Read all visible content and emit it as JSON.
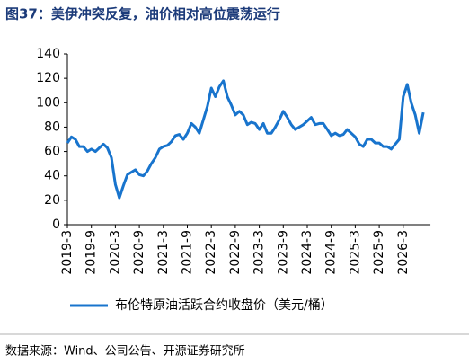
{
  "chart_data": {
    "type": "line",
    "title": "图37：美伊冲突反复，油价相对高位震荡运行",
    "source": "数据来源：Wind、公司公告、开源证券研究所",
    "categories": [
      "2019-3",
      null,
      null,
      null,
      null,
      null,
      "2019-9",
      null,
      null,
      null,
      null,
      null,
      "2020-3",
      null,
      null,
      null,
      null,
      null,
      "2020-9",
      null,
      null,
      null,
      null,
      null,
      "2021-3",
      null,
      null,
      null,
      null,
      null,
      "2021-9",
      null,
      null,
      null,
      null,
      null,
      "2022-3",
      null,
      null,
      null,
      null,
      null,
      "2022-9",
      null,
      null,
      null,
      null,
      null,
      "2023-3",
      null,
      null,
      null,
      null,
      null,
      "2023-9",
      null,
      null,
      null,
      null,
      null,
      "2024-3",
      null,
      null,
      null,
      null,
      null,
      "2024-9",
      null,
      null,
      null,
      null,
      null,
      "2025-3",
      null,
      null,
      null,
      null,
      null,
      "2025-9",
      null,
      null,
      null,
      null,
      null,
      "2026-3",
      null,
      null,
      null,
      null,
      null
    ],
    "series": [
      {
        "name": "布伦特原油活跃合约收盘价（美元/桶）",
        "color": "#1874cd",
        "values": [
          67,
          72,
          70,
          64,
          64,
          60,
          62,
          60,
          63,
          66,
          63,
          55,
          33,
          22,
          32,
          41,
          43,
          45,
          41,
          40,
          44,
          50,
          55,
          62,
          64,
          65,
          68,
          73,
          74,
          70,
          75,
          83,
          80,
          75,
          86,
          97,
          112,
          105,
          113,
          118,
          105,
          98,
          90,
          93,
          90,
          82,
          84,
          83,
          78,
          83,
          75,
          75,
          80,
          86,
          93,
          88,
          82,
          78,
          80,
          82,
          85,
          88,
          82,
          83,
          83,
          78,
          73,
          75,
          73,
          74,
          78,
          75,
          72,
          66,
          64,
          70,
          70,
          67,
          67,
          64,
          64,
          62,
          66,
          70,
          105,
          115,
          100,
          90,
          75,
          92
        ]
      }
    ],
    "ylim": [
      0,
      140
    ],
    "yticks": [
      0,
      20,
      40,
      60,
      80,
      100,
      120,
      140
    ]
  }
}
